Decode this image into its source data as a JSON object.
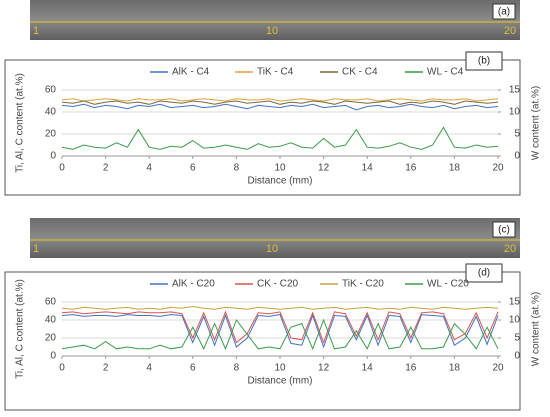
{
  "strips": [
    {
      "label": "(a)",
      "marks": [
        "1",
        "10",
        "20"
      ]
    },
    {
      "label": "(c)",
      "marks": [
        "1",
        "10",
        "20"
      ]
    }
  ],
  "chart_data": [
    {
      "type": "line",
      "panel_label": "(b)",
      "xlabel": "Distance (mm)",
      "ylabel": "Ti, Al, C content (at.%)",
      "y2label": "W content (at.%)",
      "xlim": [
        0,
        20
      ],
      "xticks": [
        0,
        2,
        4,
        6,
        8,
        10,
        12,
        14,
        16,
        18,
        20
      ],
      "ylim": [
        0,
        60
      ],
      "yticks": [
        0,
        20,
        40,
        60
      ],
      "y2lim": [
        0,
        15
      ],
      "y2ticks": [
        0,
        5,
        10,
        15
      ],
      "grid": true,
      "x": [
        0,
        0.5,
        1,
        1.5,
        2,
        2.5,
        3,
        3.5,
        4,
        4.5,
        5,
        5.5,
        6,
        6.5,
        7,
        7.5,
        8,
        8.5,
        9,
        9.5,
        10,
        10.5,
        11,
        11.5,
        12,
        12.5,
        13,
        13.5,
        14,
        14.5,
        15,
        15.5,
        16,
        16.5,
        17,
        17.5,
        18,
        18.5,
        19,
        19.5,
        20
      ],
      "series": [
        {
          "name": "AlK - C4",
          "color": "#4472c4",
          "values": [
            46,
            45,
            47,
            44,
            46,
            45,
            43,
            46,
            45,
            47,
            44,
            45,
            46,
            44,
            45,
            47,
            45,
            43,
            46,
            45,
            44,
            46,
            45,
            47,
            44,
            45,
            46,
            42,
            45,
            46,
            44,
            45,
            47,
            45,
            44,
            46,
            43,
            45,
            46,
            44,
            45
          ]
        },
        {
          "name": "TiK - C4",
          "color": "#e0a040",
          "values": [
            51,
            52,
            50,
            51,
            52,
            51,
            50,
            52,
            51,
            51,
            52,
            50,
            51,
            52,
            51,
            50,
            52,
            51,
            51,
            52,
            50,
            51,
            52,
            51,
            50,
            52,
            51,
            51,
            52,
            50,
            51,
            52,
            51,
            50,
            52,
            51,
            51,
            52,
            50,
            51,
            52
          ]
        },
        {
          "name": "CK - C4",
          "color": "#7a6a3a",
          "values": [
            49,
            48,
            50,
            47,
            49,
            50,
            48,
            49,
            47,
            50,
            49,
            48,
            50,
            49,
            47,
            49,
            50,
            48,
            49,
            50,
            47,
            49,
            48,
            50,
            49,
            47,
            50,
            49,
            48,
            49,
            50,
            47,
            49,
            48,
            50,
            49,
            47,
            50,
            49,
            48,
            49
          ]
        },
        {
          "name": "WL - C4",
          "color": "#3c9a4a",
          "axis": "y2",
          "values": [
            2,
            1.5,
            2.5,
            2,
            1.8,
            3,
            2,
            6,
            2,
            1.5,
            2.2,
            2,
            3.5,
            1.8,
            2,
            2.5,
            2,
            1.5,
            2.8,
            2,
            2.2,
            3,
            2,
            1.8,
            4,
            2,
            2.5,
            6,
            2,
            1.8,
            2.2,
            3,
            2,
            1.5,
            2.5,
            6.5,
            2,
            1.8,
            2.5,
            2,
            2.2
          ]
        }
      ]
    },
    {
      "type": "line",
      "panel_label": "(d)",
      "xlabel": "Distance (mm)",
      "ylabel": "Ti, Al, C content (at.%)",
      "y2label": "W content (at.%)",
      "xlim": [
        0,
        20
      ],
      "xticks": [
        0,
        2,
        4,
        6,
        8,
        10,
        12,
        14,
        16,
        18,
        20
      ],
      "ylim": [
        0,
        60
      ],
      "yticks": [
        0,
        20,
        40,
        60
      ],
      "y2lim": [
        0,
        15
      ],
      "y2ticks": [
        0,
        5,
        10,
        15
      ],
      "grid": true,
      "x": [
        0,
        0.5,
        1,
        1.5,
        2,
        2.5,
        3,
        3.5,
        4,
        4.5,
        5,
        5.5,
        6,
        6.5,
        7,
        7.5,
        8,
        8.5,
        9,
        9.5,
        10,
        10.5,
        11,
        11.5,
        12,
        12.5,
        13,
        13.5,
        14,
        14.5,
        15,
        15.5,
        16,
        16.5,
        17,
        17.5,
        18,
        18.5,
        19,
        19.5,
        20
      ],
      "series": [
        {
          "name": "AlK - C20",
          "color": "#4472c4",
          "values": [
            45,
            46,
            44,
            45,
            45,
            44,
            46,
            45,
            45,
            44,
            46,
            45,
            15,
            44,
            12,
            45,
            10,
            20,
            45,
            44,
            46,
            14,
            12,
            45,
            10,
            45,
            44,
            18,
            45,
            12,
            45,
            44,
            15,
            46,
            45,
            44,
            12,
            20,
            44,
            13,
            45
          ]
        },
        {
          "name": "CK - C20",
          "color": "#d9534f",
          "values": [
            48,
            49,
            47,
            48,
            49,
            48,
            47,
            49,
            48,
            48,
            49,
            47,
            20,
            48,
            18,
            49,
            15,
            25,
            48,
            47,
            49,
            20,
            18,
            48,
            15,
            49,
            47,
            22,
            48,
            18,
            49,
            47,
            20,
            48,
            49,
            47,
            18,
            25,
            48,
            20,
            49
          ]
        },
        {
          "name": "TiK - C20",
          "color": "#c8a040",
          "values": [
            53,
            52,
            54,
            53,
            52,
            53,
            54,
            52,
            53,
            52,
            54,
            53,
            55,
            53,
            52,
            54,
            53,
            52,
            54,
            53,
            52,
            53,
            54,
            52,
            53,
            54,
            52,
            53,
            54,
            52,
            53,
            52,
            54,
            53,
            52,
            54,
            53,
            52,
            53,
            54,
            53
          ]
        },
        {
          "name": "WL - C20",
          "color": "#3c9a4a",
          "axis": "y2",
          "values": [
            2,
            2.5,
            3,
            2,
            4,
            2,
            2.5,
            2,
            2,
            3,
            2,
            2.5,
            8,
            2,
            9,
            2,
            10,
            6,
            2,
            2.5,
            2,
            8,
            9,
            2,
            10,
            2,
            2.5,
            7,
            2,
            9,
            2,
            2.5,
            8,
            2,
            2,
            2.5,
            9,
            6,
            2,
            8,
            2
          ]
        }
      ]
    }
  ]
}
